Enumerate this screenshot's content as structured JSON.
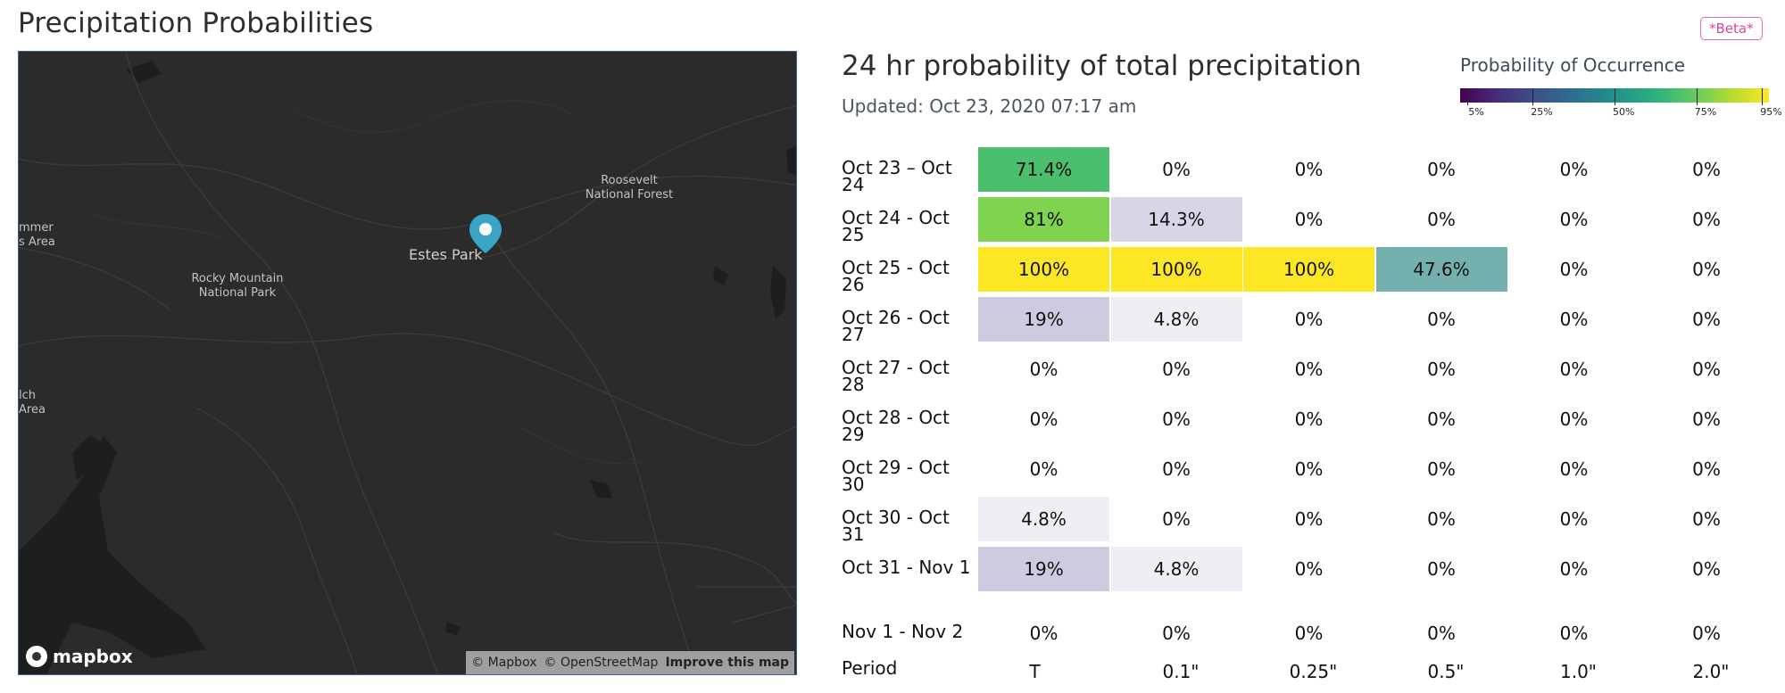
{
  "page": {
    "title": "Precipitation Probabilities",
    "beta_badge": "*Beta*"
  },
  "map": {
    "labels": {
      "estes_park": "Estes Park",
      "rocky_mountain_np": "Rocky Mountain\nNational Park",
      "roosevelt_nf": "Roosevelt\nNational Forest",
      "left_area_top": "mmer\ns Area",
      "left_area_bottom": "lch\nArea"
    },
    "logo_text": "mapbox",
    "attribution": {
      "mapbox": "© Mapbox",
      "osm": "© OpenStreetMap",
      "improve": "Improve this map"
    },
    "pin_color": "#3aa3c6"
  },
  "chart": {
    "title": "24 hr probability of total precipitation",
    "updated": "Updated: Oct 23, 2020 07:17 am"
  },
  "legend": {
    "title": "Probability of Occurrence",
    "ticks": [
      "5%",
      "25%",
      "50%",
      "75%",
      "95%"
    ],
    "tick_values": [
      5,
      25,
      50,
      75,
      95
    ],
    "colormap": "viridis"
  },
  "chart_data": {
    "type": "heatmap",
    "title": "24 hr probability of total precipitation",
    "row_label": "Period",
    "columns": [
      "T",
      "0.1\"",
      "0.25\"",
      "0.5\"",
      "1.0\"",
      "2.0\""
    ],
    "rows": [
      {
        "period": "Oct 23 – Oct 24",
        "values": [
          "71.4%",
          "0%",
          "0%",
          "0%",
          "0%",
          "0%"
        ]
      },
      {
        "period": "Oct 24 - Oct 25",
        "values": [
          "81%",
          "14.3%",
          "0%",
          "0%",
          "0%",
          "0%"
        ]
      },
      {
        "period": "Oct 25 - Oct 26",
        "values": [
          "100%",
          "100%",
          "100%",
          "47.6%",
          "0%",
          "0%"
        ]
      },
      {
        "period": "Oct 26 - Oct 27",
        "values": [
          "19%",
          "4.8%",
          "0%",
          "0%",
          "0%",
          "0%"
        ]
      },
      {
        "period": "Oct 27 - Oct 28",
        "values": [
          "0%",
          "0%",
          "0%",
          "0%",
          "0%",
          "0%"
        ]
      },
      {
        "period": "Oct 28 - Oct 29",
        "values": [
          "0%",
          "0%",
          "0%",
          "0%",
          "0%",
          "0%"
        ]
      },
      {
        "period": "Oct 29 - Oct 30",
        "values": [
          "0%",
          "0%",
          "0%",
          "0%",
          "0%",
          "0%"
        ]
      },
      {
        "period": "Oct 30 - Oct 31",
        "values": [
          "4.8%",
          "0%",
          "0%",
          "0%",
          "0%",
          "0%"
        ]
      },
      {
        "period": "Oct 31 - Nov 1",
        "values": [
          "19%",
          "4.8%",
          "0%",
          "0%",
          "0%",
          "0%"
        ]
      },
      {
        "period": "Nov 1 - Nov 2",
        "values": [
          "0%",
          "0%",
          "0%",
          "0%",
          "0%",
          "0%"
        ]
      }
    ],
    "cell_colors": {
      "71.4%": "#4bbf6b",
      "81%": "#7fd34e",
      "100%": "#fde725",
      "47.6%": "#74b0ae",
      "14.3%": "#d9d5e6",
      "19%": "#cdcbe0",
      "4.8%": "#efeef4"
    }
  }
}
